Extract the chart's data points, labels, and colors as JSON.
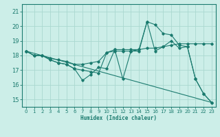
{
  "xlabel": "Humidex (Indice chaleur)",
  "background_color": "#cceee8",
  "grid_color": "#aad8d0",
  "line_color": "#1a7a6e",
  "xlim": [
    -0.5,
    23.5
  ],
  "ylim": [
    14.5,
    21.5
  ],
  "xticks": [
    0,
    1,
    2,
    3,
    4,
    5,
    6,
    7,
    8,
    9,
    10,
    11,
    12,
    13,
    14,
    15,
    16,
    17,
    18,
    19,
    20,
    21,
    22,
    23
  ],
  "yticks": [
    15,
    16,
    17,
    18,
    19,
    20,
    21
  ],
  "series": [
    {
      "x": [
        0,
        1,
        2,
        3,
        4,
        5,
        6,
        7,
        8,
        9,
        10,
        11,
        12,
        13,
        14,
        15,
        16,
        17,
        18,
        19,
        20,
        21,
        22,
        23
      ],
      "y": [
        18.3,
        18.0,
        18.0,
        17.7,
        17.5,
        17.4,
        17.1,
        16.3,
        16.7,
        17.2,
        17.1,
        18.4,
        16.4,
        18.3,
        18.3,
        20.3,
        18.3,
        18.6,
        19.0,
        18.5,
        18.6,
        16.4,
        15.4,
        14.8
      ],
      "has_markers": true
    },
    {
      "x": [
        0,
        1,
        2,
        3,
        4,
        5,
        6,
        7,
        8,
        9,
        10,
        11,
        12,
        13,
        14,
        15,
        16,
        17,
        18,
        19,
        20,
        21,
        22,
        23
      ],
      "y": [
        18.3,
        18.0,
        18.0,
        17.8,
        17.7,
        17.6,
        17.4,
        17.4,
        17.5,
        17.6,
        18.2,
        18.4,
        18.4,
        18.4,
        18.4,
        18.5,
        18.5,
        18.6,
        18.7,
        18.8,
        18.8,
        18.8,
        18.8,
        18.8
      ],
      "has_markers": true
    },
    {
      "x": [
        0,
        1,
        2,
        3,
        4,
        5,
        6,
        7,
        8,
        9,
        10,
        11,
        12,
        13,
        14,
        15,
        16,
        17,
        18,
        19,
        20,
        21,
        22,
        23
      ],
      "y": [
        18.3,
        18.0,
        18.0,
        17.7,
        17.5,
        17.4,
        17.1,
        17.0,
        16.9,
        16.8,
        18.2,
        18.3,
        18.3,
        18.3,
        18.4,
        20.3,
        20.1,
        19.5,
        19.4,
        18.7,
        18.6,
        16.4,
        15.4,
        14.8
      ],
      "has_markers": true
    },
    {
      "x": [
        0,
        23
      ],
      "y": [
        18.3,
        14.8
      ],
      "has_markers": false
    }
  ]
}
